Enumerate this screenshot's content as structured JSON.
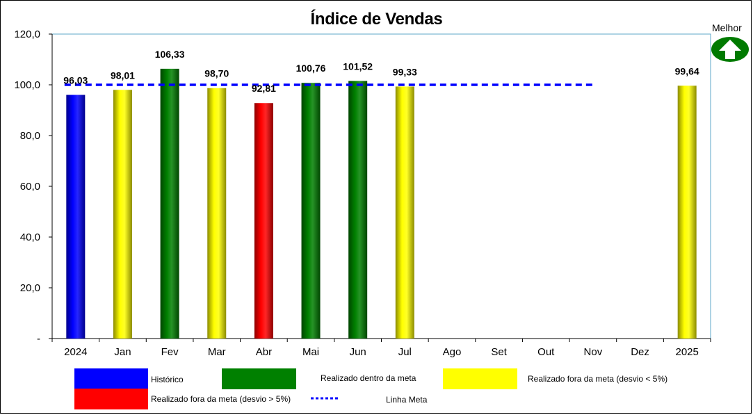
{
  "chart_data": {
    "type": "bar",
    "title": "Índice de Vendas",
    "categories": [
      "2024",
      "Jan",
      "Fev",
      "Mar",
      "Abr",
      "Mai",
      "Jun",
      "Jul",
      "Ago",
      "Set",
      "Out",
      "Nov",
      "Dez",
      "2025"
    ],
    "values": [
      96.03,
      98.01,
      106.33,
      98.7,
      92.81,
      100.76,
      101.52,
      99.33,
      null,
      null,
      null,
      null,
      null,
      99.64
    ],
    "value_labels": [
      "96,03",
      "98,01",
      "106,33",
      "98,70",
      "92,81",
      "100,76",
      "101,52",
      "99,33",
      "",
      "",
      "",
      "",
      "",
      "99,64"
    ],
    "bar_status": [
      "historico",
      "fora_menor",
      "dentro",
      "fora_menor",
      "fora_maior",
      "dentro",
      "dentro",
      "fora_menor",
      "",
      "",
      "",
      "",
      "",
      "fora_menor"
    ],
    "ylim": [
      0,
      120
    ],
    "yticks": [
      0,
      20,
      40,
      60,
      80,
      100,
      120
    ],
    "ytick_labels": [
      "-",
      "20,0",
      "40,0",
      "60,0",
      "80,0",
      "100,0",
      "120,0"
    ],
    "target": {
      "value": 100,
      "from_index": 0,
      "to_index": 11
    },
    "xlabel": "",
    "ylabel": "",
    "grid": false,
    "legend_position": "bottom"
  },
  "better": {
    "label": "Melhor",
    "icon": "arrow-up-icon",
    "direction": "up"
  },
  "colors": {
    "historico": "#0000ff",
    "dentro": "#008000",
    "fora_menor": "#ffff00",
    "fora_maior": "#ff0000",
    "target_line": "#0000ff",
    "plot_border": "#5ea7c8",
    "better_icon": "#007a00"
  },
  "legend": [
    {
      "key": "historico",
      "label": "Histórico",
      "kind": "swatch"
    },
    {
      "key": "dentro",
      "label": "Realizado dentro da meta",
      "kind": "swatch"
    },
    {
      "key": "fora_menor",
      "label": "Realizado fora da meta (desvio < 5%)",
      "kind": "swatch"
    },
    {
      "key": "fora_maior",
      "label": "Realizado fora da meta (desvio > 5%)",
      "kind": "swatch"
    },
    {
      "key": "target_line",
      "label": "Linha Meta",
      "kind": "line"
    }
  ]
}
